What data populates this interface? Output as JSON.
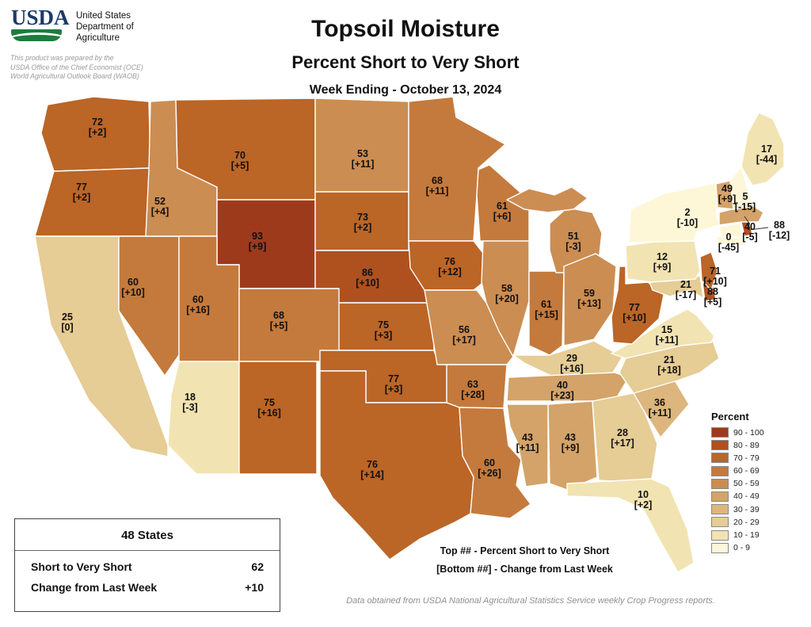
{
  "header": {
    "agency": "USDA",
    "dept": [
      "United States",
      "Department of",
      "Agriculture"
    ],
    "prepared": [
      "This product was prepared by the",
      "USDA Office of the Chief Economist (OCE)",
      "World Agricultural Outlook Board (WAOB)"
    ],
    "title": "Topsoil Moisture",
    "subtitle": "Percent Short to Very Short",
    "week_ending": "Week Ending - October 13, 2024"
  },
  "map": {
    "states": [
      {
        "abbr": "WA",
        "value": 72,
        "change": "+2"
      },
      {
        "abbr": "OR",
        "value": 77,
        "change": "+2"
      },
      {
        "abbr": "CA",
        "value": 25,
        "change": "0"
      },
      {
        "abbr": "NV",
        "value": 60,
        "change": "+10"
      },
      {
        "abbr": "ID",
        "value": 52,
        "change": "+4"
      },
      {
        "abbr": "MT",
        "value": 70,
        "change": "+5"
      },
      {
        "abbr": "WY",
        "value": 93,
        "change": "+9"
      },
      {
        "abbr": "UT",
        "value": 60,
        "change": "+16"
      },
      {
        "abbr": "CO",
        "value": 68,
        "change": "+5"
      },
      {
        "abbr": "AZ",
        "value": 18,
        "change": "-3"
      },
      {
        "abbr": "NM",
        "value": 75,
        "change": "+16"
      },
      {
        "abbr": "ND",
        "value": 53,
        "change": "+11"
      },
      {
        "abbr": "SD",
        "value": 73,
        "change": "+2"
      },
      {
        "abbr": "NE",
        "value": 86,
        "change": "+10"
      },
      {
        "abbr": "KS",
        "value": 75,
        "change": "+3"
      },
      {
        "abbr": "OK",
        "value": 77,
        "change": "+3"
      },
      {
        "abbr": "TX",
        "value": 76,
        "change": "+14"
      },
      {
        "abbr": "MN",
        "value": 68,
        "change": "+11"
      },
      {
        "abbr": "IA",
        "value": 76,
        "change": "+12"
      },
      {
        "abbr": "MO",
        "value": 56,
        "change": "+17"
      },
      {
        "abbr": "AR",
        "value": 63,
        "change": "+28"
      },
      {
        "abbr": "LA",
        "value": 60,
        "change": "+26"
      },
      {
        "abbr": "WI",
        "value": 61,
        "change": "+6"
      },
      {
        "abbr": "IL",
        "value": 58,
        "change": "+20"
      },
      {
        "abbr": "IN",
        "value": 61,
        "change": "+15"
      },
      {
        "abbr": "MI",
        "value": 51,
        "change": "-3"
      },
      {
        "abbr": "OH",
        "value": 59,
        "change": "+13"
      },
      {
        "abbr": "KY",
        "value": 29,
        "change": "+16"
      },
      {
        "abbr": "TN",
        "value": 40,
        "change": "+23"
      },
      {
        "abbr": "MS",
        "value": 43,
        "change": "+11"
      },
      {
        "abbr": "AL",
        "value": 43,
        "change": "+9"
      },
      {
        "abbr": "GA",
        "value": 28,
        "change": "+17"
      },
      {
        "abbr": "FL",
        "value": 10,
        "change": "+2"
      },
      {
        "abbr": "SC",
        "value": 36,
        "change": "+11"
      },
      {
        "abbr": "NC",
        "value": 21,
        "change": "+18"
      },
      {
        "abbr": "VA",
        "value": 15,
        "change": "+11"
      },
      {
        "abbr": "WV",
        "value": 77,
        "change": "+10"
      },
      {
        "abbr": "KYx",
        "value": 29,
        "change": "+16"
      },
      {
        "abbr": "MD",
        "value": 21,
        "change": "-17"
      },
      {
        "abbr": "DE",
        "value": 88,
        "change": "+5"
      },
      {
        "abbr": "PA",
        "value": 12,
        "change": "+9"
      },
      {
        "abbr": "NJ",
        "value": 71,
        "change": "+10"
      },
      {
        "abbr": "NY",
        "value": 2,
        "change": "-10"
      },
      {
        "abbr": "CT",
        "value": 0,
        "change": "-45"
      },
      {
        "abbr": "RI",
        "value": 88,
        "change": "-12"
      },
      {
        "abbr": "MA",
        "value": 40,
        "change": "-5"
      },
      {
        "abbr": "VT",
        "value": 49,
        "change": "+9"
      },
      {
        "abbr": "NH",
        "value": 5,
        "change": "-15"
      },
      {
        "abbr": "ME",
        "value": 17,
        "change": "-44"
      }
    ]
  },
  "legend": {
    "title": "Percent",
    "buckets": [
      {
        "label": "90 - 100",
        "color": "#9e3a1c"
      },
      {
        "label": "80 - 89",
        "color": "#ae511f"
      },
      {
        "label": "70 - 79",
        "color": "#bb6527"
      },
      {
        "label": "60 - 69",
        "color": "#c47a3c"
      },
      {
        "label": "50 - 59",
        "color": "#cb8d52"
      },
      {
        "label": "40 - 49",
        "color": "#d3a369"
      },
      {
        "label": "30 - 39",
        "color": "#dcb67d"
      },
      {
        "label": "20 - 29",
        "color": "#e6cc95"
      },
      {
        "label": "10 - 19",
        "color": "#f2e3b2"
      },
      {
        "label": "0 - 9",
        "color": "#fdf7d8"
      }
    ]
  },
  "summary": {
    "title": "48 States",
    "rows": [
      {
        "label": "Short to Very Short",
        "value": "62"
      },
      {
        "label": "Change from Last Week",
        "value": "+10"
      }
    ]
  },
  "notes": [
    "Top ## - Percent Short to Very Short",
    "[Bottom ##] - Change from Last Week"
  ],
  "footer": "Data obtained from USDA National Agricultural Statistics Service weekly Crop Progress reports."
}
